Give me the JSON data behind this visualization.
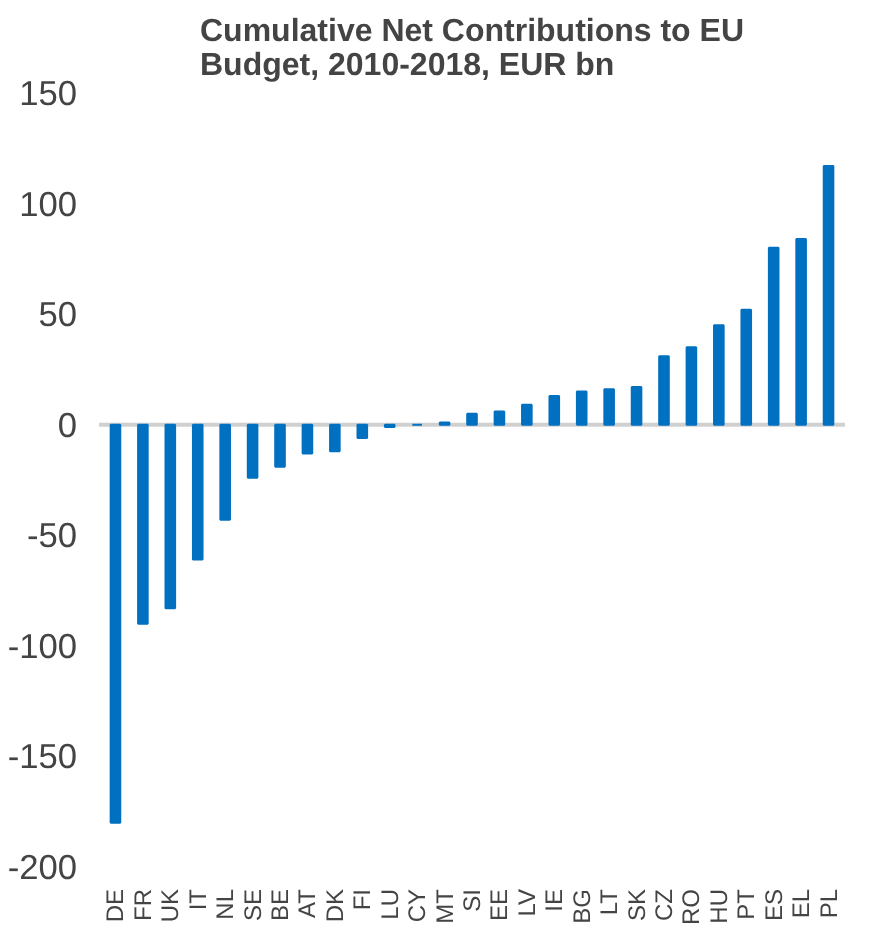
{
  "chart_data": {
    "type": "bar",
    "title": "Cumulative Net Contributions to EU\nBudget, 2010-2018, EUR bn",
    "categories": [
      "DE",
      "FR",
      "UK",
      "IT",
      "NL",
      "SE",
      "BE",
      "AT",
      "DK",
      "FI",
      "LU",
      "CY",
      "MT",
      "SI",
      "EE",
      "LV",
      "IE",
      "BG",
      "LT",
      "SK",
      "CZ",
      "RO",
      "HU",
      "PT",
      "ES",
      "EL",
      "PL"
    ],
    "values": [
      -180,
      -90,
      -83,
      -61,
      -43,
      -24,
      -19,
      -13,
      -12,
      -6,
      -1,
      0,
      1,
      5,
      6,
      9,
      13,
      15,
      16,
      17,
      31,
      35,
      45,
      52,
      80,
      84,
      117
    ],
    "color": "#0070c0",
    "ylim": [
      -200,
      150
    ],
    "yticks": [
      -200,
      -150,
      -100,
      -50,
      0,
      50,
      100,
      150
    ],
    "grid": false,
    "ref_lines": [
      {
        "axis": "y",
        "value": 0,
        "color": "#d0d0d0"
      }
    ]
  }
}
